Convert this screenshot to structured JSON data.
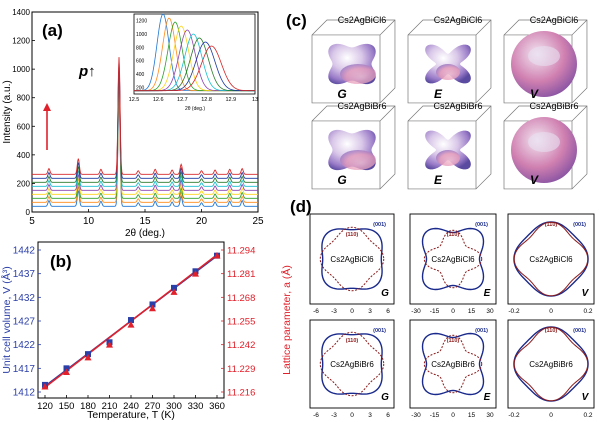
{
  "panels": {
    "a": {
      "label": "(a)",
      "annotation": "p",
      "ylabel": "Intensity (a.u.)",
      "xlabel": "2θ (deg.)",
      "yticks": [
        "0",
        "200",
        "400",
        "600",
        "800",
        "1000",
        "1200",
        "1400"
      ],
      "xticks": [
        "5",
        "10",
        "15",
        "20",
        "25"
      ],
      "inset_xticks": [
        "12.5",
        "12.6",
        "12.7",
        "12.8",
        "12.9",
        "13"
      ],
      "inset_yticks": [
        "200",
        "400",
        "600",
        "800",
        "1000",
        "1200"
      ],
      "inset_xlabel": "2θ (deg.)"
    },
    "b": {
      "label": "(b)",
      "ylabel_left": "Unit cell volume, V (Å³)",
      "ylabel_right": "Lattice parameter, a (Å)",
      "xlabel": "Temperature, T (K)",
      "xticks": [
        "120",
        "150",
        "180",
        "210",
        "240",
        "270",
        "300",
        "330",
        "360"
      ],
      "yticks_left": [
        "1412",
        "1417",
        "1422",
        "1427",
        "1432",
        "1437",
        "1442"
      ],
      "yticks_right": [
        "11.216",
        "11.229",
        "11.242",
        "11.255",
        "11.268",
        "11.281",
        "11.294"
      ]
    },
    "c": {
      "label": "(c)",
      "titles": [
        "Cs2AgBiCl6",
        "Cs2AgBiCl6",
        "Cs2AgBiCl6",
        "Cs2AgBiBr6",
        "Cs2AgBiBr6",
        "Cs2AgBiBr6"
      ],
      "symbols": [
        "G",
        "E",
        "V",
        "G",
        "E",
        "V"
      ]
    },
    "d": {
      "label": "(d)",
      "titles": [
        "Cs2AgBiCl6",
        "Cs2AgBiCl6",
        "Cs2AgBiCl6",
        "Cs2AgBiBr6",
        "Cs2AgBiBr6",
        "Cs2AgBiBr6"
      ],
      "symbols": [
        "G",
        "E",
        "V",
        "G",
        "E",
        "V"
      ],
      "legend_001": "(001)",
      "legend_110": "(110)",
      "ticks_G": [
        "-6",
        "-3",
        "0",
        "3",
        "6"
      ],
      "ticks_E": [
        "-30",
        "-15",
        "0",
        "15",
        "30"
      ],
      "ticks_V": [
        "-0.2",
        "0",
        "0.2"
      ]
    }
  },
  "colors": {
    "blue": "#2b3fa8",
    "red": "#e0202a",
    "navy": "#1a2a8c",
    "darkred": "#8b1a1a"
  },
  "chart_data": [
    {
      "type": "line",
      "panel": "a",
      "xlabel": "2θ (deg.)",
      "ylabel": "Intensity (a.u.)",
      "xlim": [
        5,
        25
      ],
      "ylim": [
        0,
        1400
      ],
      "peaks_2theta": [
        6.5,
        9.1,
        11.1,
        12.7,
        14.4,
        15.9,
        17.4,
        18.2,
        20.0,
        21.2,
        22.5,
        23.6
      ],
      "n_series": 9
    },
    {
      "type": "scatter",
      "panel": "b",
      "xlabel": "Temperature, T (K)",
      "ylabel": "Unit cell volume, V (Å³)",
      "x": [
        120,
        150,
        180,
        210,
        240,
        270,
        300,
        330,
        360
      ],
      "series": [
        {
          "values": [
            1413.5,
            1417.0,
            1420.0,
            1422.5,
            1427.2,
            1430.5,
            1434.0,
            1437.5,
            1440.8
          ]
        },
        {
          "values": [
            11.219,
            11.227,
            11.235,
            11.242,
            11.253,
            11.262,
            11.271,
            11.281,
            11.291
          ]
        }
      ],
      "ylim": [
        1412,
        1442
      ]
    }
  ]
}
